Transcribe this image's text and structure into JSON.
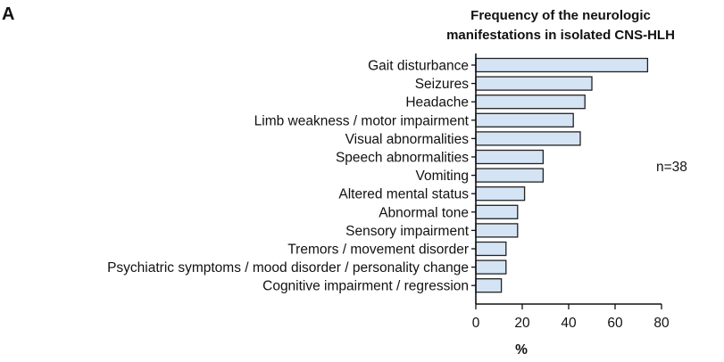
{
  "panel_label": "A",
  "chart_data": {
    "type": "bar",
    "orientation": "horizontal",
    "title_lines": [
      "Frequency of the neurologic",
      "manifestations in isolated CNS-HLH"
    ],
    "categories": [
      "Gait disturbance",
      "Seizures",
      "Headache",
      "Limb weakness / motor impairment",
      "Visual abnormalities",
      "Speech abnormalities",
      "Vomiting",
      "Altered mental status",
      "Abnormal tone",
      "Sensory impairment",
      "Tremors / movement disorder",
      "Psychiatric symptoms / mood disorder / personality change",
      "Cognitive impairment / regression"
    ],
    "values": [
      74,
      50,
      47,
      42,
      45,
      29,
      29,
      21,
      18,
      18,
      13,
      13,
      11
    ],
    "xlabel": "%",
    "xlim": [
      0,
      80
    ],
    "xticks": [
      0,
      20,
      40,
      60,
      80
    ],
    "annotation": "n=38",
    "bar_color": "#d4e4f5",
    "grid": false
  }
}
